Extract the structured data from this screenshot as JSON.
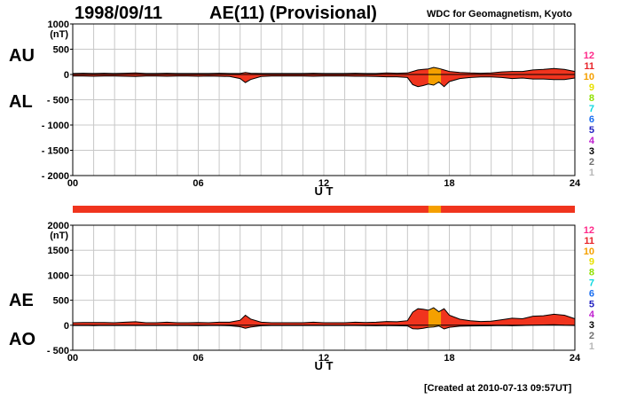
{
  "header": {
    "date": "1998/09/11",
    "title": "AE(11) (Provisional)",
    "org": "WDC for Geomagnetism, Kyoto"
  },
  "footer": {
    "created": "[Created at 2010-07-13 09:57UT]"
  },
  "panel_labels": {
    "top_upper": "AU",
    "top_lower": "AL",
    "bottom_upper": "AE",
    "bottom_lower": "AO"
  },
  "activity_levels": [
    {
      "label": "12",
      "color": "#ff2a8a"
    },
    {
      "label": "11",
      "color": "#e8242a"
    },
    {
      "label": "10",
      "color": "#f5a000"
    },
    {
      "label": "9",
      "color": "#e8e000"
    },
    {
      "label": "8",
      "color": "#90e000"
    },
    {
      "label": "7",
      "color": "#10d8e0"
    },
    {
      "label": "6",
      "color": "#1a6ef0"
    },
    {
      "label": "5",
      "color": "#2020c0"
    },
    {
      "label": "4",
      "color": "#c020d0"
    },
    {
      "label": "3",
      "color": "#000000"
    },
    {
      "label": "2",
      "color": "#707070"
    },
    {
      "label": "1",
      "color": "#b8b8b8"
    }
  ],
  "chart_data": [
    {
      "type": "area",
      "panel": "AU/AL",
      "ylabel": "(nT)",
      "ylim": [
        -2000,
        1000
      ],
      "yticks": [
        1000,
        500,
        0,
        -500,
        -1000,
        -1500,
        -2000
      ],
      "ytick_labels": [
        "1000",
        "500",
        "0",
        "- 500",
        "- 1000",
        "- 1500",
        "- 2000"
      ],
      "xlim": [
        0,
        24
      ],
      "xticks": [
        0,
        6,
        12,
        18,
        24
      ],
      "xtick_labels": [
        "00",
        "06",
        "12",
        "18",
        "24"
      ],
      "xlabel": "U T",
      "grid": true,
      "fill_color": "#f0341e",
      "highlight": {
        "from": 17.0,
        "to": 17.6,
        "color": "#f5a000"
      },
      "x": [
        0,
        0.5,
        1,
        1.5,
        2,
        2.5,
        3,
        3.5,
        4,
        4.5,
        5,
        5.5,
        6,
        6.5,
        7,
        7.5,
        8,
        8.25,
        8.5,
        9,
        9.5,
        10,
        10.5,
        11,
        11.5,
        12,
        12.5,
        13,
        13.5,
        14,
        14.5,
        15,
        15.5,
        16,
        16.25,
        16.5,
        16.75,
        17,
        17.25,
        17.5,
        17.75,
        18,
        18.5,
        19,
        19.5,
        20,
        20.5,
        21,
        21.5,
        22,
        22.5,
        23,
        23.5,
        24
      ],
      "series": [
        {
          "name": "AU",
          "values": [
            20,
            25,
            20,
            25,
            20,
            25,
            30,
            20,
            20,
            25,
            20,
            20,
            20,
            20,
            25,
            20,
            20,
            40,
            25,
            20,
            20,
            20,
            20,
            20,
            25,
            20,
            20,
            20,
            25,
            20,
            20,
            30,
            25,
            30,
            60,
            90,
            100,
            110,
            140,
            120,
            90,
            60,
            40,
            30,
            25,
            30,
            50,
            60,
            60,
            90,
            100,
            120,
            100,
            60
          ]
        },
        {
          "name": "AL",
          "values": [
            -30,
            -30,
            -35,
            -30,
            -30,
            -35,
            -40,
            -30,
            -30,
            -35,
            -30,
            -30,
            -35,
            -30,
            -35,
            -40,
            -80,
            -160,
            -100,
            -40,
            -30,
            -30,
            -30,
            -30,
            -35,
            -30,
            -30,
            -30,
            -35,
            -35,
            -40,
            -45,
            -45,
            -60,
            -200,
            -240,
            -220,
            -190,
            -210,
            -150,
            -240,
            -140,
            -80,
            -60,
            -50,
            -50,
            -60,
            -80,
            -70,
            -90,
            -90,
            -100,
            -100,
            -70
          ]
        }
      ]
    },
    {
      "type": "area",
      "panel": "AE/AO",
      "ylabel": "(nT)",
      "ylim": [
        -500,
        2000
      ],
      "yticks": [
        2000,
        1500,
        1000,
        500,
        0,
        -500
      ],
      "ytick_labels": [
        "2000",
        "1500",
        "1000",
        "500",
        "0",
        "- 500"
      ],
      "xlim": [
        0,
        24
      ],
      "xticks": [
        0,
        6,
        12,
        18,
        24
      ],
      "xtick_labels": [
        "00",
        "06",
        "12",
        "18",
        "24"
      ],
      "xlabel": "U T",
      "grid": true,
      "fill_color": "#f0341e",
      "highlight": {
        "from": 17.0,
        "to": 17.6,
        "color": "#f5a000"
      },
      "x": [
        0,
        0.5,
        1,
        1.5,
        2,
        2.5,
        3,
        3.5,
        4,
        4.5,
        5,
        5.5,
        6,
        6.5,
        7,
        7.5,
        8,
        8.25,
        8.5,
        9,
        9.5,
        10,
        10.5,
        11,
        11.5,
        12,
        12.5,
        13,
        13.5,
        14,
        14.5,
        15,
        15.5,
        16,
        16.25,
        16.5,
        16.75,
        17,
        17.25,
        17.5,
        17.75,
        18,
        18.5,
        19,
        19.5,
        20,
        20.5,
        21,
        21.5,
        22,
        22.5,
        23,
        23.5,
        24
      ],
      "series": [
        {
          "name": "AE",
          "values": [
            50,
            55,
            55,
            55,
            50,
            60,
            70,
            50,
            50,
            60,
            50,
            50,
            55,
            50,
            60,
            60,
            100,
            200,
            125,
            60,
            50,
            50,
            50,
            50,
            60,
            50,
            50,
            50,
            60,
            55,
            60,
            75,
            70,
            90,
            260,
            330,
            320,
            300,
            350,
            270,
            330,
            200,
            120,
            90,
            75,
            80,
            110,
            140,
            130,
            180,
            190,
            220,
            200,
            130
          ]
        },
        {
          "name": "AO",
          "values": [
            -5,
            -3,
            -8,
            -3,
            -5,
            -5,
            -5,
            -5,
            -5,
            -5,
            -5,
            -5,
            -8,
            -5,
            -5,
            -10,
            -30,
            -60,
            -38,
            -10,
            -5,
            -5,
            -5,
            -5,
            -5,
            -5,
            -5,
            -5,
            -5,
            -8,
            -10,
            -8,
            -10,
            -15,
            -70,
            -75,
            -60,
            -40,
            -35,
            -15,
            -75,
            -40,
            -20,
            -15,
            -12,
            -10,
            -5,
            -10,
            -5,
            0,
            5,
            10,
            0,
            -5
          ]
        }
      ]
    }
  ]
}
